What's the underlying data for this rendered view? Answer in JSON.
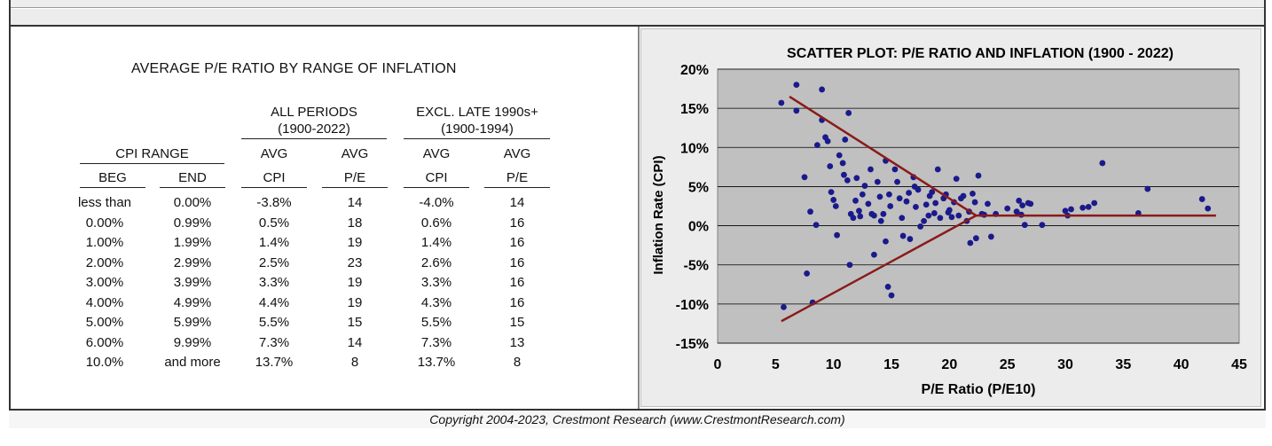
{
  "table": {
    "title": "AVERAGE P/E RATIO BY RANGE OF INFLATION",
    "group_all": "ALL PERIODS",
    "group_all_sub": "(1900-2022)",
    "group_excl": "EXCL. LATE 1990s+",
    "group_excl_sub": "(1900-1994)",
    "cpi_range": "CPI RANGE",
    "col_beg": "BEG",
    "col_end": "END",
    "avg": "AVG",
    "cpi": "CPI",
    "pe": "P/E",
    "rows": [
      {
        "beg": "less than",
        "end": "0.00%",
        "all_cpi": "-3.8%",
        "all_pe": "14",
        "ex_cpi": "-4.0%",
        "ex_pe": "14"
      },
      {
        "beg": "0.00%",
        "end": "0.99%",
        "all_cpi": "0.5%",
        "all_pe": "18",
        "ex_cpi": "0.6%",
        "ex_pe": "16"
      },
      {
        "beg": "1.00%",
        "end": "1.99%",
        "all_cpi": "1.4%",
        "all_pe": "19",
        "ex_cpi": "1.4%",
        "ex_pe": "16"
      },
      {
        "beg": "2.00%",
        "end": "2.99%",
        "all_cpi": "2.5%",
        "all_pe": "23",
        "ex_cpi": "2.6%",
        "ex_pe": "16"
      },
      {
        "beg": "3.00%",
        "end": "3.99%",
        "all_cpi": "3.3%",
        "all_pe": "19",
        "ex_cpi": "3.3%",
        "ex_pe": "16"
      },
      {
        "beg": "4.00%",
        "end": "4.99%",
        "all_cpi": "4.4%",
        "all_pe": "19",
        "ex_cpi": "4.3%",
        "ex_pe": "16"
      },
      {
        "beg": "5.00%",
        "end": "5.99%",
        "all_cpi": "5.5%",
        "all_pe": "15",
        "ex_cpi": "5.5%",
        "ex_pe": "15"
      },
      {
        "beg": "6.00%",
        "end": "9.99%",
        "all_cpi": "7.3%",
        "all_pe": "14",
        "ex_cpi": "7.3%",
        "ex_pe": "13"
      },
      {
        "beg": "10.0%",
        "end": "and more",
        "all_cpi": "13.7%",
        "all_pe": "8",
        "ex_cpi": "13.7%",
        "ex_pe": "8"
      }
    ]
  },
  "copyright": "Copyright 2004-2023, Crestmont Research (www.CrestmontResearch.com)",
  "chart_data": {
    "type": "scatter",
    "title": "SCATTER PLOT: P/E RATIO AND INFLATION (1900 - 2022)",
    "xlabel": "P/E Ratio (P/E10)",
    "ylabel": "Inflation Rate (CPI)",
    "xlim": [
      0,
      45
    ],
    "ylim": [
      -15,
      20
    ],
    "x_ticks": [
      "0",
      "5",
      "10",
      "15",
      "20",
      "25",
      "30",
      "35",
      "40",
      "45"
    ],
    "y_ticks": [
      "-15%",
      "-10%",
      "-5%",
      "0%",
      "5%",
      "10%",
      "15%",
      "20%"
    ],
    "grid": "horizontal",
    "plot_background": "#c0c0c0",
    "point_color": "#1a1a8c",
    "trend_color": "#8b1a1a",
    "points": [
      [
        5.5,
        15.7
      ],
      [
        6.8,
        18.0
      ],
      [
        6.8,
        14.7
      ],
      [
        9.0,
        17.4
      ],
      [
        7.5,
        6.2
      ],
      [
        8.0,
        1.8
      ],
      [
        8.5,
        0.1
      ],
      [
        8.6,
        10.3
      ],
      [
        9.0,
        13.5
      ],
      [
        9.3,
        11.3
      ],
      [
        9.5,
        10.8
      ],
      [
        9.7,
        7.6
      ],
      [
        9.8,
        4.3
      ],
      [
        10.0,
        3.3
      ],
      [
        10.2,
        2.5
      ],
      [
        10.3,
        -1.2
      ],
      [
        10.5,
        9.0
      ],
      [
        10.8,
        8.0
      ],
      [
        10.9,
        6.5
      ],
      [
        11.0,
        11.0
      ],
      [
        11.2,
        5.8
      ],
      [
        11.3,
        14.4
      ],
      [
        11.5,
        1.5
      ],
      [
        11.7,
        1.0
      ],
      [
        11.9,
        3.2
      ],
      [
        12.0,
        6.1
      ],
      [
        12.2,
        1.9
      ],
      [
        12.3,
        1.2
      ],
      [
        12.5,
        4.0
      ],
      [
        12.7,
        5.1
      ],
      [
        13.0,
        2.8
      ],
      [
        13.2,
        7.2
      ],
      [
        13.3,
        1.5
      ],
      [
        13.5,
        1.3
      ],
      [
        13.8,
        5.6
      ],
      [
        14.0,
        3.7
      ],
      [
        14.1,
        0.6
      ],
      [
        14.3,
        1.5
      ],
      [
        14.5,
        8.3
      ],
      [
        14.5,
        -2.0
      ],
      [
        14.7,
        -7.8
      ],
      [
        14.8,
        4.0
      ],
      [
        14.9,
        2.5
      ],
      [
        15.0,
        -8.9
      ],
      [
        15.3,
        7.2
      ],
      [
        15.5,
        5.6
      ],
      [
        15.7,
        3.5
      ],
      [
        15.9,
        1.0
      ],
      [
        16.0,
        -1.3
      ],
      [
        16.3,
        3.1
      ],
      [
        16.5,
        4.2
      ],
      [
        16.6,
        -1.7
      ],
      [
        16.9,
        6.2
      ],
      [
        17.0,
        5.0
      ],
      [
        17.1,
        2.4
      ],
      [
        17.3,
        4.6
      ],
      [
        17.5,
        -0.1
      ],
      [
        17.8,
        0.6
      ],
      [
        18.0,
        2.7
      ],
      [
        18.2,
        1.3
      ],
      [
        18.3,
        3.8
      ],
      [
        18.5,
        4.3
      ],
      [
        18.7,
        1.6
      ],
      [
        18.8,
        2.9
      ],
      [
        19.0,
        7.2
      ],
      [
        19.2,
        1.0
      ],
      [
        19.5,
        3.5
      ],
      [
        19.7,
        4.0
      ],
      [
        19.9,
        1.7
      ],
      [
        20.0,
        2.0
      ],
      [
        20.2,
        1.1
      ],
      [
        20.4,
        3.0
      ],
      [
        20.6,
        6.0
      ],
      [
        20.8,
        1.3
      ],
      [
        21.0,
        3.5
      ],
      [
        21.2,
        3.8
      ],
      [
        21.5,
        0.6
      ],
      [
        21.7,
        1.8
      ],
      [
        21.8,
        -2.2
      ],
      [
        22.0,
        4.1
      ],
      [
        22.2,
        3.0
      ],
      [
        22.3,
        -1.6
      ],
      [
        22.5,
        6.4
      ],
      [
        22.8,
        1.5
      ],
      [
        23.0,
        1.4
      ],
      [
        23.3,
        2.8
      ],
      [
        23.6,
        -1.4
      ],
      [
        24.0,
        1.5
      ],
      [
        25.0,
        2.2
      ],
      [
        25.8,
        1.8
      ],
      [
        26.0,
        3.2
      ],
      [
        26.2,
        1.4
      ],
      [
        26.3,
        2.6
      ],
      [
        26.5,
        0.1
      ],
      [
        26.8,
        2.9
      ],
      [
        27.0,
        2.8
      ],
      [
        28.0,
        0.1
      ],
      [
        30.0,
        1.9
      ],
      [
        30.2,
        1.3
      ],
      [
        30.5,
        2.1
      ],
      [
        31.5,
        2.3
      ],
      [
        32.0,
        2.4
      ],
      [
        32.5,
        2.9
      ],
      [
        33.2,
        8.0
      ],
      [
        36.3,
        1.6
      ],
      [
        37.1,
        4.7
      ],
      [
        41.8,
        3.4
      ],
      [
        42.3,
        2.2
      ],
      [
        5.7,
        -10.4
      ],
      [
        8.2,
        -9.8
      ],
      [
        7.7,
        -6.1
      ],
      [
        11.4,
        -5.0
      ],
      [
        13.5,
        -3.7
      ]
    ],
    "trend_lines": [
      {
        "from": [
          6.2,
          16.5
        ],
        "to": [
          22.3,
          1.3
        ]
      },
      {
        "from": [
          5.5,
          -12.2
        ],
        "to": [
          22.3,
          1.3
        ]
      },
      {
        "from": [
          22.3,
          1.3
        ],
        "to": [
          43.0,
          1.3
        ]
      }
    ]
  }
}
